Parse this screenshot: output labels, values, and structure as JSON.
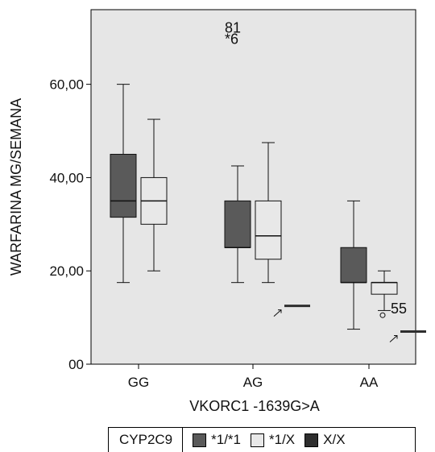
{
  "chart_data": {
    "type": "boxplot",
    "xlabel": "VKORC1 -1639G>A",
    "ylabel": "WARFARINA MG/SEMANA",
    "ylim": [
      0,
      76
    ],
    "yticks": [
      0,
      20,
      40,
      60
    ],
    "ytick_labels": [
      "00",
      "20,00",
      "40,00",
      "60,00"
    ],
    "categories": [
      "GG",
      "AG",
      "AA"
    ],
    "grid": false,
    "legend": {
      "title": "CYP2C9",
      "position": "bottom",
      "entries": [
        "*1/*1",
        "*1/X",
        "X/X"
      ]
    },
    "series": [
      {
        "name": "*1/*1",
        "color": "#5a5a5a",
        "boxes": [
          {
            "category": "GG",
            "min": 17.5,
            "q1": 31.5,
            "median": 35,
            "q3": 45,
            "max": 60
          },
          {
            "category": "AG",
            "min": 17.5,
            "q1": 25,
            "median": 25,
            "q3": 35,
            "max": 42.5
          },
          {
            "category": "AA",
            "min": 7.5,
            "q1": 17.5,
            "median": 17.5,
            "q3": 25,
            "max": 35
          }
        ]
      },
      {
        "name": "*1/X",
        "color": "#e8e8e8",
        "boxes": [
          {
            "category": "GG",
            "min": 20,
            "q1": 30,
            "median": 35,
            "q3": 40,
            "max": 52.5
          },
          {
            "category": "AG",
            "min": 17.5,
            "q1": 22.5,
            "median": 27.5,
            "q3": 35,
            "max": 47.5
          },
          {
            "category": "AA",
            "min": 11.5,
            "q1": 15,
            "median": 17.5,
            "q3": 17.5,
            "max": 20
          }
        ]
      },
      {
        "name": "X/X",
        "color": "#2e2e2e",
        "boxes": [
          {
            "category": "AG",
            "single": 12.5
          },
          {
            "category": "AA",
            "single": 7
          }
        ]
      }
    ],
    "outliers": [
      {
        "category": "GG",
        "series": "*1/*1",
        "value": 72.5,
        "label": "81",
        "marker": ""
      },
      {
        "category": "GG",
        "series": "*1/*1",
        "value": 70,
        "label": "6",
        "marker": "*"
      },
      {
        "category": "AA",
        "series": "*1/X",
        "value": 10.5,
        "label": "55",
        "marker": "o"
      }
    ]
  }
}
